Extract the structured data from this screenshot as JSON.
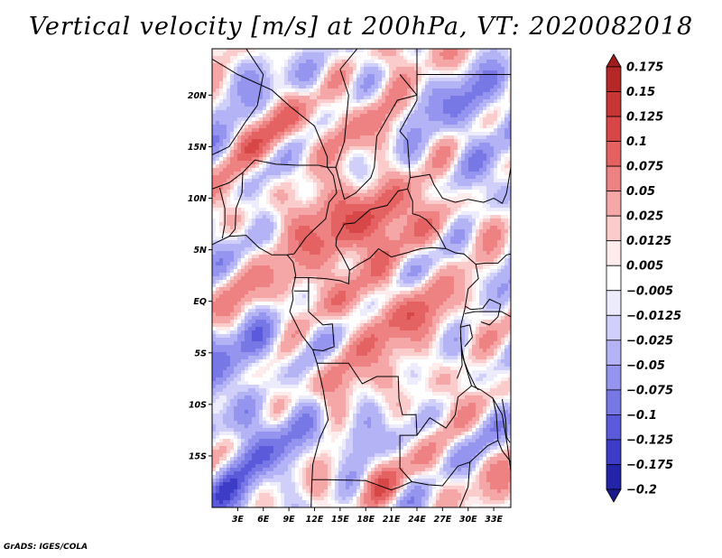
{
  "chart_data": {
    "type": "heatmap",
    "title": "Vertical velocity [m/s] at 200hPa, VT: 2020082018",
    "variable": "Vertical velocity",
    "units": "m/s",
    "level": "200hPa",
    "valid_time": "2020082018",
    "x_axis": {
      "range": [
        0,
        35
      ],
      "ticks": [
        3,
        6,
        9,
        12,
        15,
        18,
        21,
        24,
        27,
        30,
        33
      ],
      "tick_labels": [
        "3E",
        "6E",
        "9E",
        "12E",
        "15E",
        "18E",
        "21E",
        "24E",
        "27E",
        "30E",
        "33E"
      ]
    },
    "y_axis": {
      "range": [
        -20,
        24.5
      ],
      "ticks": [
        20,
        15,
        10,
        5,
        0,
        -5,
        -10,
        -15
      ],
      "tick_labels": [
        "20N",
        "15N",
        "10N",
        "5N",
        "EQ",
        "5S",
        "10S",
        "15S"
      ]
    },
    "colorbar": {
      "orientation": "vertical",
      "location": "right",
      "levels": [
        0.175,
        0.15,
        0.125,
        0.1,
        0.075,
        0.05,
        0.025,
        0.0125,
        0.005,
        -0.005,
        -0.0125,
        -0.025,
        -0.05,
        -0.075,
        -0.1,
        -0.125,
        -0.175,
        -0.2
      ],
      "labels": [
        "0.175",
        "0.15",
        "0.125",
        "0.1",
        "0.075",
        "0.05",
        "0.025",
        "0.0125",
        "0.005",
        "−0.005",
        "−0.0125",
        "−0.025",
        "−0.05",
        "−0.075",
        "−0.1",
        "−0.125",
        "−0.175",
        "−0.2"
      ],
      "colors": [
        "#a01d1d",
        "#b52828",
        "#c83535",
        "#d84747",
        "#e56262",
        "#ee8282",
        "#f5a6a6",
        "#fbcccc",
        "#feecec",
        "#ffffff",
        "#ececfc",
        "#cfcff9",
        "#b3b3f5",
        "#9595ef",
        "#7777e6",
        "#5a5adb",
        "#3c3cc6",
        "#2323a8",
        "#1a1a8c"
      ]
    },
    "boundary_color": "#000000"
  },
  "footer": {
    "credit": "GrADS: IGES/COLA"
  }
}
